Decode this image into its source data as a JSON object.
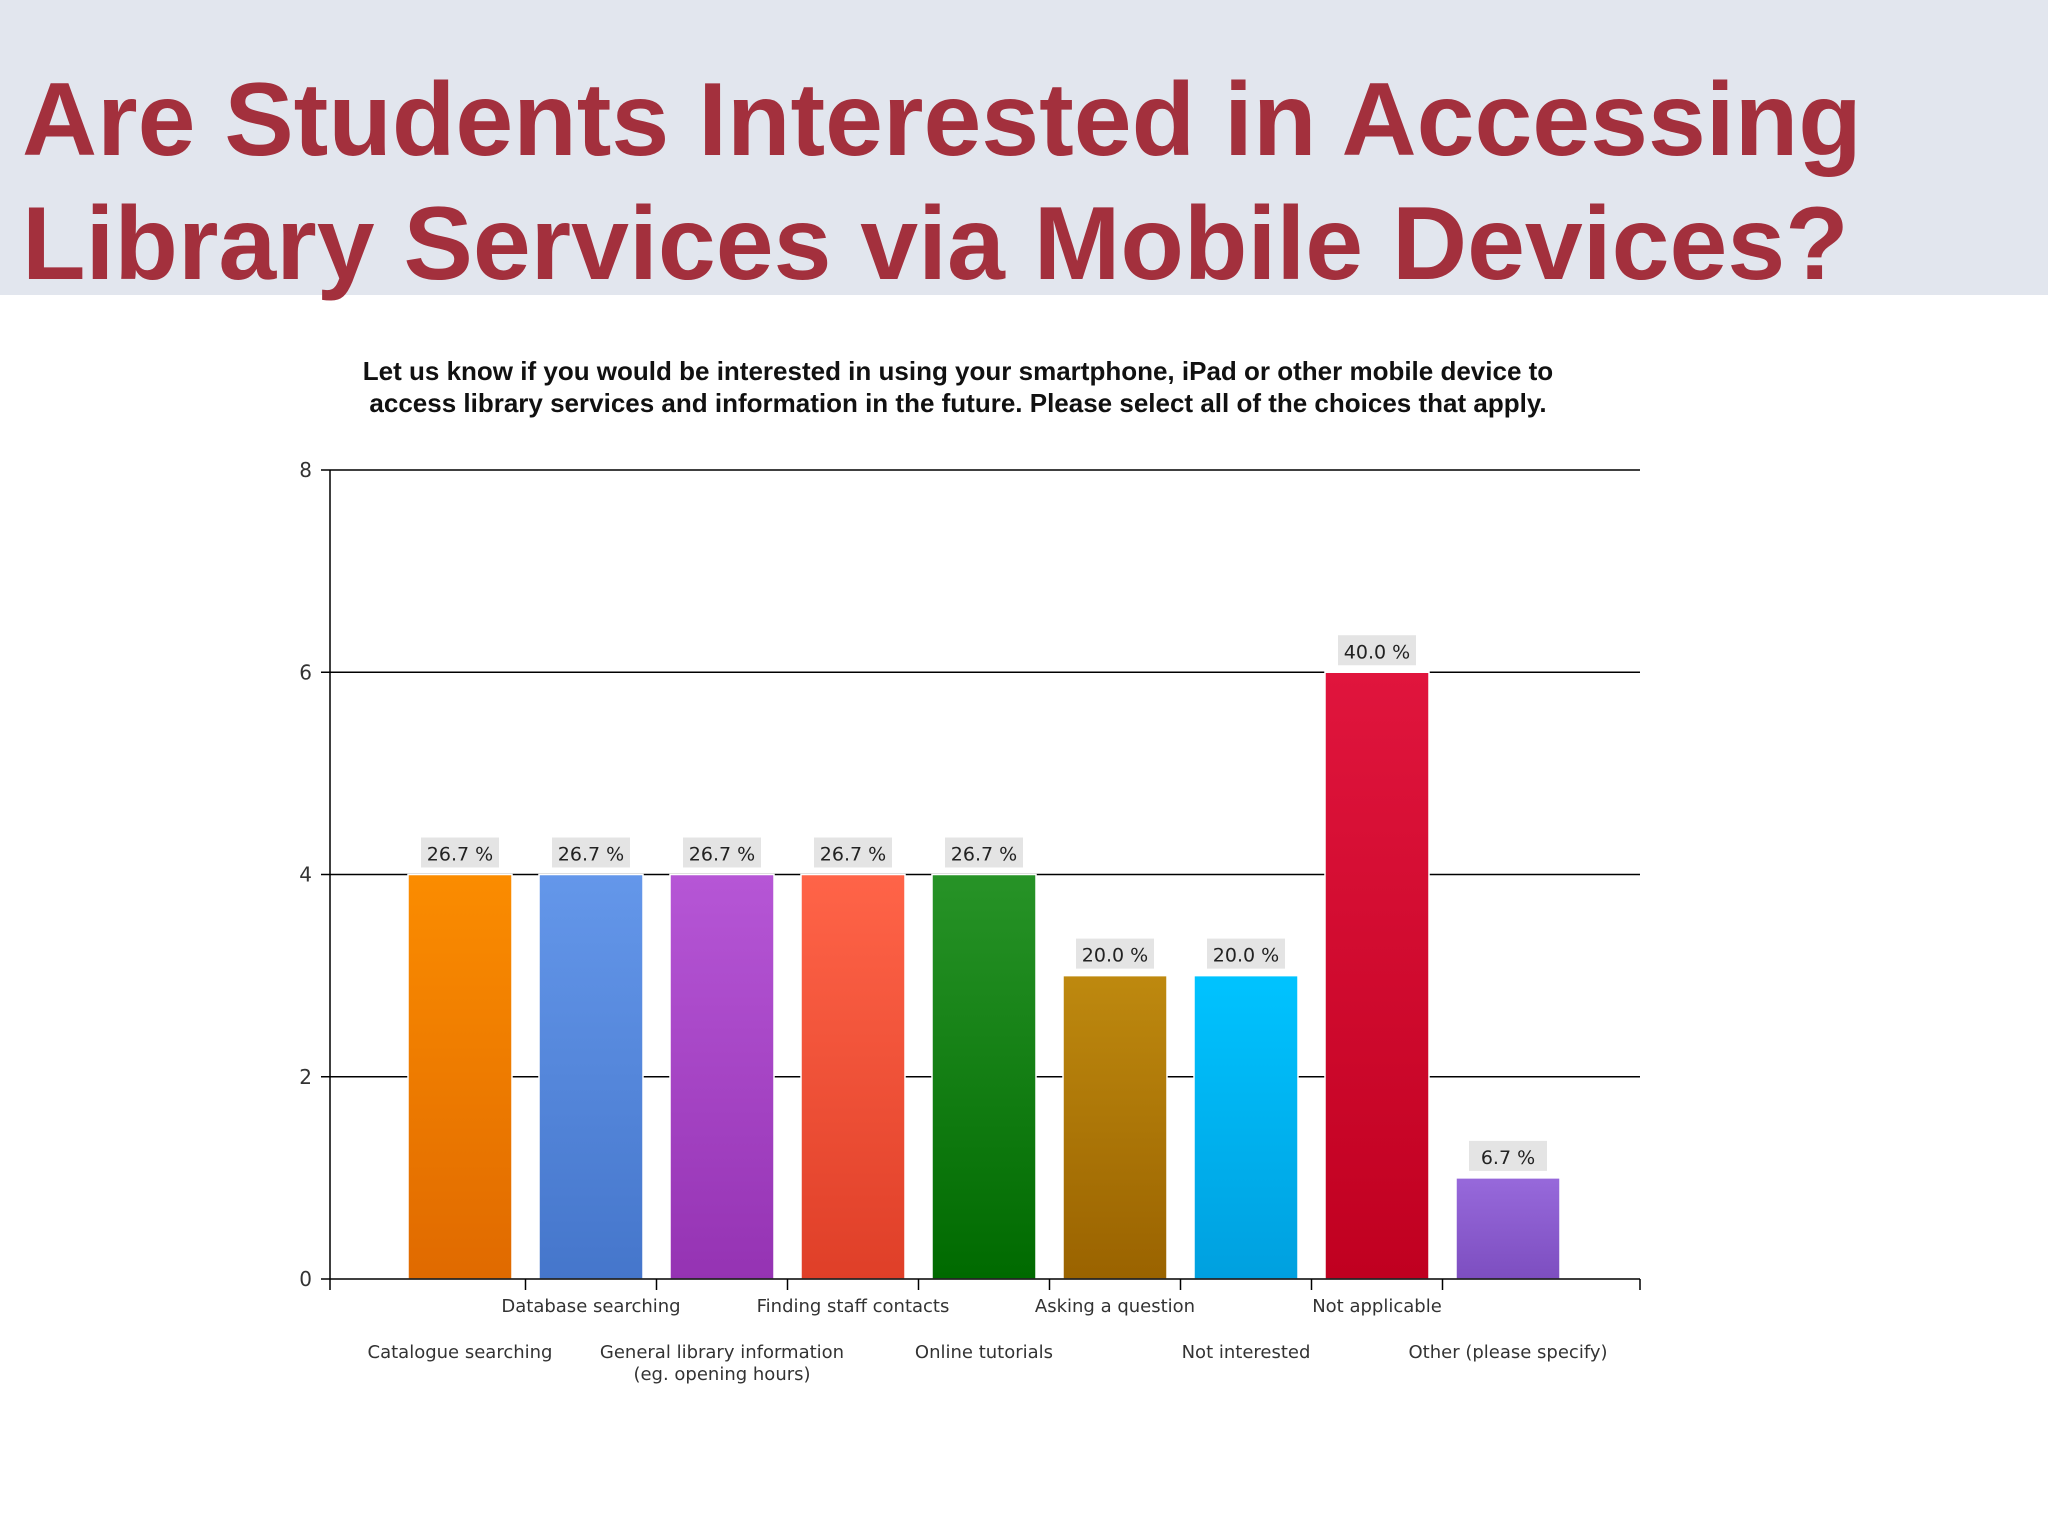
{
  "slide": {
    "title_line1": "Are Students Interested in Accessing",
    "title_line2": "Library Services via Mobile Devices?"
  },
  "chart_data": {
    "type": "bar",
    "title_line1": "Let us know if you would be interested in using your smartphone, iPad or other mobile device to",
    "title_line2": "access library services and information in the future. Please select all of the choices that apply.",
    "xlabel": "",
    "ylabel": "",
    "ylim": [
      0,
      8
    ],
    "yticks": [
      0,
      2,
      4,
      6,
      8
    ],
    "grid": true,
    "categories": [
      [
        "Catalogue searching"
      ],
      [
        "Database searching"
      ],
      [
        "General library information",
        "(eg. opening hours)"
      ],
      [
        "Finding staff contacts"
      ],
      [
        "Online tutorials"
      ],
      [
        "Asking a question"
      ],
      [
        "Not interested"
      ],
      [
        "Not applicable"
      ],
      [
        "Other (please specify)"
      ]
    ],
    "values": [
      4,
      4,
      4,
      4,
      4,
      3,
      3,
      6,
      1
    ],
    "labels": [
      "26.7 %",
      "26.7 %",
      "26.7 %",
      "26.7 %",
      "26.7 %",
      "20.0 %",
      "20.0 %",
      "40.0 %",
      "6.7 %"
    ],
    "colors": [
      [
        "#fb8c00",
        "#e06a00"
      ],
      [
        "#6497ea",
        "#4576cb"
      ],
      [
        "#b656d6",
        "#9533b3"
      ],
      [
        "#ff6448",
        "#df3f28"
      ],
      [
        "#279327",
        "#006a00"
      ],
      [
        "#be890f",
        "#9a6300"
      ],
      [
        "#00c3ff",
        "#00a0df"
      ],
      [
        "#e0153d",
        "#c00020"
      ],
      [
        "#9769db",
        "#7d4ec0"
      ]
    ]
  }
}
